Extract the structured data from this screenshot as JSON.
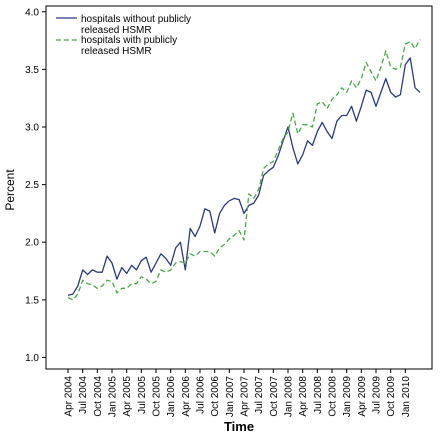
{
  "chart_data": {
    "type": "line",
    "xlabel": "Time",
    "ylabel": "Percent",
    "ylim": [
      0.9,
      4.05
    ],
    "yticks": [
      "1.0",
      "1.5",
      "2.0",
      "2.5",
      "3.0",
      "3.5",
      "4.0"
    ],
    "yticks_values": [
      1.0,
      1.5,
      2.0,
      2.5,
      3.0,
      3.5,
      4.0
    ],
    "grid": false,
    "legend_position": "top-left",
    "x_tick_labels": [
      "Apr 2004",
      "Jul 2004",
      "Oct 2004",
      "Jan 2005",
      "Apr 2005",
      "Jul 2005",
      "Oct 2005",
      "Jan 2006",
      "Apr 2006",
      "Jul 2006",
      "Oct 2006",
      "Jan 2007",
      "Apr 2007",
      "Jul 2007",
      "Oct 2007",
      "Jan 2008",
      "Apr 2008",
      "Jul 2008",
      "Oct 2008",
      "Jan 2009",
      "Apr 2009",
      "Jul 2009",
      "Oct 2009",
      "Jan 2010"
    ],
    "x_tick_month_index": [
      0,
      3,
      6,
      9,
      12,
      15,
      18,
      21,
      24,
      27,
      30,
      33,
      36,
      39,
      42,
      45,
      48,
      51,
      54,
      57,
      60,
      63,
      66,
      69
    ],
    "x_start": "Apr 2004",
    "x_end": "Dec 2010",
    "series": [
      {
        "name": "hospitals without publicly released HSMR",
        "color": "#2b3a7a",
        "dash": "solid",
        "values": [
          1.54,
          1.55,
          1.62,
          1.76,
          1.72,
          1.76,
          1.74,
          1.74,
          1.88,
          1.82,
          1.68,
          1.78,
          1.73,
          1.8,
          1.76,
          1.84,
          1.87,
          1.74,
          1.82,
          1.9,
          1.86,
          1.8,
          1.95,
          2.0,
          1.76,
          2.12,
          2.05,
          2.14,
          2.29,
          2.27,
          2.08,
          2.25,
          2.32,
          2.36,
          2.38,
          2.37,
          2.25,
          2.32,
          2.34,
          2.41,
          2.58,
          2.62,
          2.65,
          2.75,
          2.88,
          3.0,
          2.82,
          2.68,
          2.76,
          2.88,
          2.84,
          2.96,
          3.04,
          2.96,
          2.9,
          3.05,
          3.1,
          3.1,
          3.18,
          3.05,
          3.18,
          3.32,
          3.3,
          3.18,
          3.3,
          3.42,
          3.3,
          3.26,
          3.28,
          3.54,
          3.6,
          3.34,
          3.3
        ]
      },
      {
        "name": "hospitals with publicly released HSMR",
        "color": "#4aa84a",
        "dash": "dashed",
        "values": [
          1.52,
          1.5,
          1.55,
          1.67,
          1.64,
          1.63,
          1.6,
          1.62,
          1.67,
          1.66,
          1.56,
          1.6,
          1.6,
          1.64,
          1.64,
          1.7,
          1.68,
          1.64,
          1.66,
          1.76,
          1.74,
          1.76,
          1.82,
          1.83,
          1.82,
          1.9,
          1.88,
          1.92,
          1.92,
          1.92,
          1.88,
          1.95,
          1.98,
          2.03,
          2.06,
          2.1,
          2.02,
          2.42,
          2.38,
          2.46,
          2.64,
          2.68,
          2.7,
          2.8,
          2.9,
          2.96,
          3.12,
          2.94,
          3.02,
          3.02,
          3.0,
          3.2,
          3.22,
          3.16,
          3.24,
          3.28,
          3.34,
          3.3,
          3.4,
          3.34,
          3.42,
          3.56,
          3.48,
          3.4,
          3.52,
          3.66,
          3.52,
          3.5,
          3.52,
          3.72,
          3.74,
          3.68,
          3.76
        ]
      }
    ]
  }
}
